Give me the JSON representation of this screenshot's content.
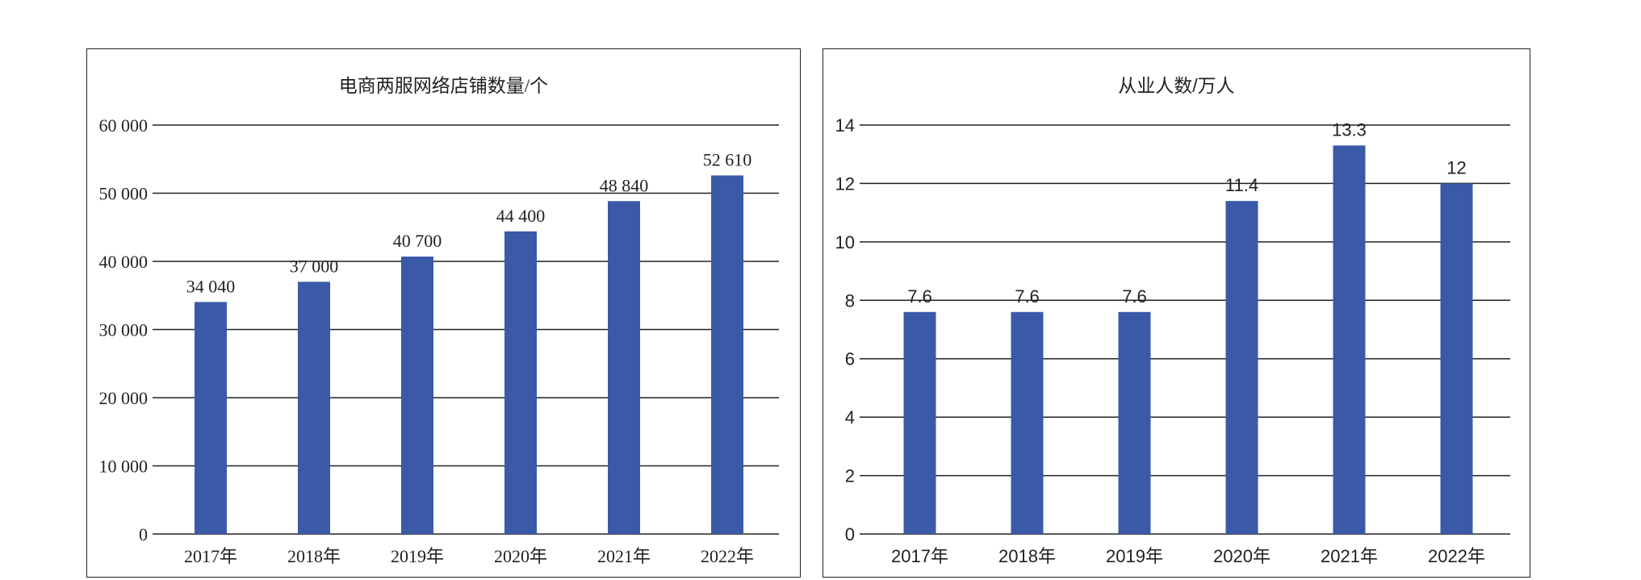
{
  "chart_data": [
    {
      "type": "bar",
      "title": "电商两服网络店铺数量/个",
      "categories": [
        "2017年",
        "2018年",
        "2019年",
        "2020年",
        "2021年",
        "2022年"
      ],
      "values": [
        34040,
        37000,
        40700,
        44400,
        48840,
        52610
      ],
      "value_labels": [
        "34 040",
        "37 000",
        "40 700",
        "44 400",
        "48 840",
        "52 610"
      ],
      "yticks": [
        0,
        10000,
        20000,
        30000,
        40000,
        50000,
        60000
      ],
      "ytick_labels": [
        "0",
        "10 000",
        "20 000",
        "30 000",
        "40 000",
        "50 000",
        "60 000"
      ],
      "ylim": [
        0,
        60000
      ],
      "grid": true,
      "bar_color": "#3a5aa8"
    },
    {
      "type": "bar",
      "title": "从业人数/万人",
      "categories": [
        "2017年",
        "2018年",
        "2019年",
        "2020年",
        "2021年",
        "2022年"
      ],
      "values": [
        7.6,
        7.6,
        7.6,
        11.4,
        13.3,
        12
      ],
      "value_labels": [
        "7.6",
        "7.6",
        "7.6",
        "11.4",
        "13.3",
        "12"
      ],
      "yticks": [
        0,
        2,
        4,
        6,
        8,
        10,
        12,
        14
      ],
      "ytick_labels": [
        "0",
        "2",
        "4",
        "6",
        "8",
        "10",
        "12",
        "14"
      ],
      "ylim": [
        0,
        14
      ],
      "grid": true,
      "bar_color": "#3a5aa8"
    }
  ]
}
